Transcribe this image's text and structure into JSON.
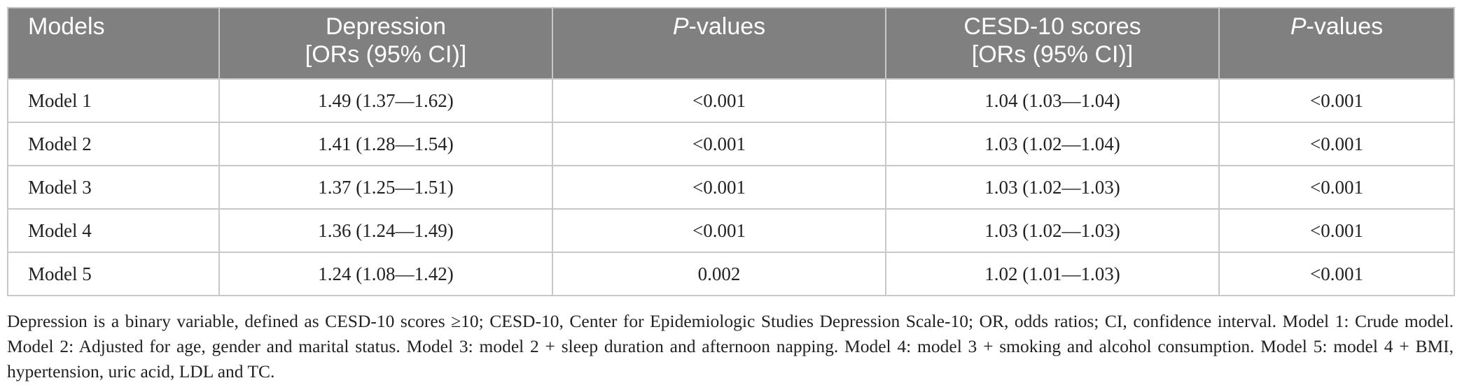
{
  "table": {
    "headers": {
      "models": "Models",
      "depression_line1": "Depression",
      "depression_line2": "[ORs (95% CI)]",
      "pvalues1_italic": "P",
      "pvalues1_rest": "-values",
      "cesd_line1": "CESD-10 scores",
      "cesd_line2": "[ORs (95% CI)]",
      "pvalues2_italic": "P",
      "pvalues2_rest": "-values"
    },
    "rows": [
      {
        "model": "Model 1",
        "depression_or": "1.49 (1.37—1.62)",
        "depression_p": "<0.001",
        "cesd_or": "1.04 (1.03—1.04)",
        "cesd_p": "<0.001"
      },
      {
        "model": "Model 2",
        "depression_or": "1.41 (1.28—1.54)",
        "depression_p": "<0.001",
        "cesd_or": "1.03 (1.02—1.04)",
        "cesd_p": "<0.001"
      },
      {
        "model": "Model 3",
        "depression_or": "1.37 (1.25—1.51)",
        "depression_p": "<0.001",
        "cesd_or": "1.03 (1.02—1.03)",
        "cesd_p": "<0.001"
      },
      {
        "model": "Model 4",
        "depression_or": "1.36 (1.24—1.49)",
        "depression_p": "<0.001",
        "cesd_or": "1.03 (1.02—1.03)",
        "cesd_p": "<0.001"
      },
      {
        "model": "Model 5",
        "depression_or": "1.24 (1.08—1.42)",
        "depression_p": "0.002",
        "cesd_or": "1.02 (1.01—1.03)",
        "cesd_p": "<0.001"
      }
    ]
  },
  "footnote": "Depression is a binary variable, defined as CESD-10 scores ≥10; CESD-10, Center for Epidemiologic Studies Depression Scale-10; OR, odds ratios; CI, confidence interval. Model 1: Crude model. Model 2: Adjusted for age, gender and marital status. Model 3: model 2 + sleep duration and afternoon napping. Model 4: model 3 + smoking and alcohol consumption. Model 5: model 4 + BMI, hypertension, uric acid, LDL and TC.",
  "colors": {
    "header_background": "#808080",
    "header_text": "#ffffff",
    "grid_line": "#c8c8c8",
    "body_text": "#222222"
  }
}
